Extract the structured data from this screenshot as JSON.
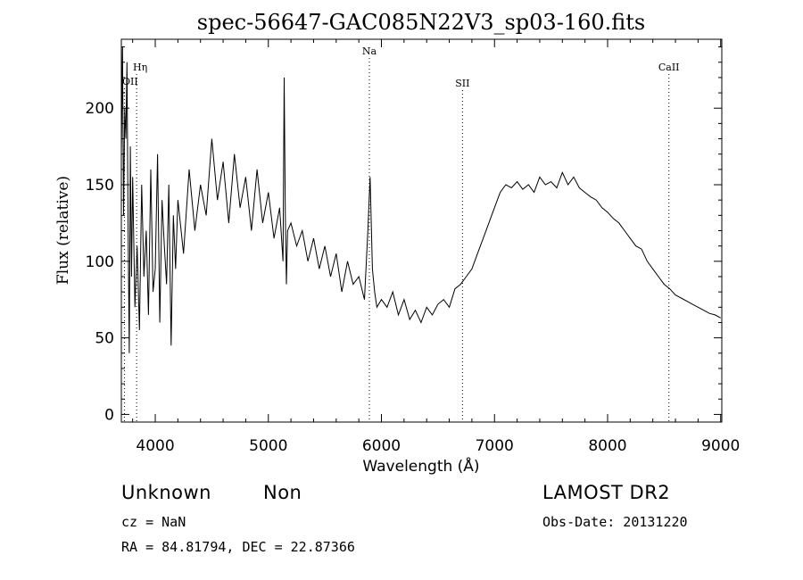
{
  "chart_data": {
    "type": "line",
    "title": "spec-56647-GAC085N22V3_sp03-160.fits",
    "xlabel": "Wavelength (Å)",
    "ylabel": "Flux (relative)",
    "xlim": [
      3700,
      9010
    ],
    "ylim": [
      -5,
      245
    ],
    "xticks": [
      4000,
      5000,
      6000,
      7000,
      8000,
      9000
    ],
    "yticks": [
      0,
      50,
      100,
      150,
      200
    ],
    "xtick_labels": [
      "4000",
      "5000",
      "6000",
      "7000",
      "8000",
      "9000"
    ],
    "ytick_labels": [
      "0",
      "50",
      "100",
      "150",
      "200"
    ],
    "grid": false,
    "lines": [
      {
        "label": "OII",
        "x": 3727
      },
      {
        "label": "Hη",
        "x": 3835
      },
      {
        "label": "Na",
        "x": 5893
      },
      {
        "label": "SII",
        "x": 6717
      },
      {
        "label": "CaII",
        "x": 8542
      }
    ],
    "series": [
      {
        "x": [
          3700,
          3710,
          3720,
          3730,
          3740,
          3750,
          3760,
          3770,
          3780,
          3790,
          3800,
          3820,
          3840,
          3860,
          3880,
          3900,
          3920,
          3940,
          3960,
          3980,
          4000,
          4020,
          4040,
          4060,
          4080,
          4100,
          4120,
          4140,
          4160,
          4180,
          4200,
          4250,
          4300,
          4350,
          4400,
          4450,
          4500,
          4550,
          4600,
          4650,
          4700,
          4750,
          4800,
          4850,
          4900,
          4950,
          5000,
          5050,
          5100,
          5130,
          5140,
          5150,
          5160,
          5170,
          5200,
          5250,
          5300,
          5350,
          5400,
          5450,
          5500,
          5550,
          5600,
          5650,
          5700,
          5750,
          5800,
          5850,
          5880,
          5900,
          5920,
          5940,
          5960,
          6000,
          6050,
          6100,
          6150,
          6200,
          6250,
          6300,
          6350,
          6400,
          6450,
          6500,
          6550,
          6600,
          6650,
          6700,
          6750,
          6800,
          6850,
          6900,
          6950,
          7000,
          7050,
          7100,
          7150,
          7200,
          7250,
          7300,
          7350,
          7400,
          7450,
          7500,
          7550,
          7600,
          7650,
          7700,
          7750,
          7800,
          7850,
          7900,
          7950,
          8000,
          8050,
          8100,
          8150,
          8200,
          8250,
          8300,
          8350,
          8400,
          8450,
          8500,
          8550,
          8600,
          8650,
          8700,
          8750,
          8800,
          8850,
          8900,
          8950,
          9000
        ],
        "values": [
          170,
          240,
          130,
          200,
          180,
          230,
          120,
          40,
          175,
          90,
          155,
          70,
          110,
          55,
          150,
          90,
          120,
          65,
          160,
          80,
          95,
          170,
          60,
          140,
          110,
          85,
          150,
          45,
          130,
          95,
          140,
          105,
          160,
          120,
          150,
          130,
          180,
          140,
          165,
          125,
          170,
          135,
          155,
          120,
          160,
          125,
          145,
          115,
          135,
          100,
          220,
          130,
          85,
          120,
          125,
          110,
          120,
          100,
          115,
          95,
          110,
          90,
          105,
          80,
          100,
          85,
          90,
          75,
          120,
          155,
          95,
          80,
          70,
          75,
          70,
          80,
          65,
          75,
          62,
          68,
          60,
          70,
          65,
          72,
          75,
          70,
          82,
          85,
          90,
          95,
          105,
          115,
          125,
          135,
          145,
          150,
          148,
          152,
          147,
          150,
          145,
          155,
          150,
          152,
          148,
          158,
          150,
          155,
          148,
          145,
          142,
          140,
          135,
          132,
          128,
          125,
          120,
          115,
          110,
          108,
          100,
          95,
          90,
          85,
          82,
          78,
          76,
          74,
          72,
          70,
          68,
          66,
          65,
          63
        ]
      }
    ]
  },
  "footer": {
    "left_line1_a": "Unknown",
    "left_line1_b": "Non",
    "cz": "cz = NaN",
    "radec": "RA =  84.81794, DEC =  22.87366",
    "survey": "LAMOST DR2",
    "obsdate": "Obs-Date: 20131220"
  }
}
